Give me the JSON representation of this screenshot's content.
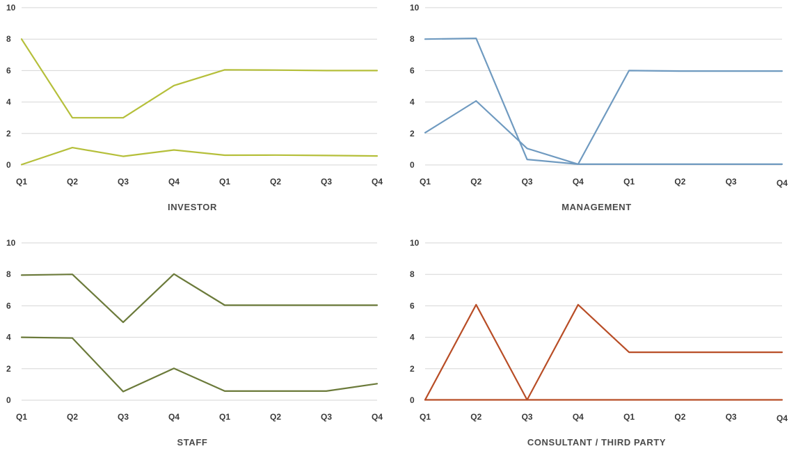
{
  "chart_data": [
    {
      "type": "line",
      "title": "INVESTOR",
      "categories": [
        "Q1",
        "Q2",
        "Q3",
        "Q4",
        "Q1",
        "Q2",
        "Q3",
        "Q4"
      ],
      "ylim": [
        0,
        10
      ],
      "yticks": [
        0,
        2,
        4,
        6,
        8,
        10
      ],
      "grid": true,
      "color": "#b5bf3a",
      "series": [
        {
          "values": [
            8.0,
            3.0,
            3.0,
            5.05,
            6.05,
            6.03,
            6.0,
            6.0
          ]
        },
        {
          "values": [
            0.02,
            1.1,
            0.55,
            0.95,
            0.62,
            0.63,
            0.6,
            0.57
          ]
        }
      ]
    },
    {
      "type": "line",
      "title": "MANAGEMENT",
      "categories": [
        "Q1",
        "Q2",
        "Q3",
        "Q4",
        "Q1",
        "Q2",
        "Q3",
        "Q4"
      ],
      "ylim": [
        0,
        10
      ],
      "yticks": [
        0,
        2,
        4,
        6,
        8,
        10
      ],
      "grid": true,
      "color": "#6f9ac0",
      "series": [
        {
          "values": [
            8.0,
            8.05,
            0.35,
            0.05,
            6.0,
            5.97,
            5.97,
            5.97
          ]
        },
        {
          "values": [
            2.05,
            4.07,
            1.05,
            0.05,
            0.05,
            0.05,
            0.05,
            0.05
          ]
        }
      ]
    },
    {
      "type": "line",
      "title": "STAFF",
      "categories": [
        "Q1",
        "Q2",
        "Q3",
        "Q4",
        "Q1",
        "Q2",
        "Q3",
        "Q4"
      ],
      "ylim": [
        0,
        10
      ],
      "yticks": [
        0,
        2,
        4,
        6,
        8,
        10
      ],
      "grid": true,
      "color": "#6b7a3a",
      "series": [
        {
          "values": [
            7.95,
            8.0,
            4.95,
            8.02,
            6.04,
            6.04,
            6.04,
            6.04
          ]
        },
        {
          "values": [
            4.0,
            3.95,
            0.55,
            2.02,
            0.58,
            0.58,
            0.58,
            1.05
          ]
        }
      ]
    },
    {
      "type": "line",
      "title": "CONSULTANT / THIRD PARTY",
      "categories": [
        "Q1",
        "Q2",
        "Q3",
        "Q4",
        "Q1",
        "Q2",
        "Q3",
        "Q4"
      ],
      "ylim": [
        0,
        10
      ],
      "yticks": [
        0,
        2,
        4,
        6,
        8,
        10
      ],
      "grid": true,
      "color": "#b84d26",
      "series": [
        {
          "values": [
            0.02,
            6.07,
            0.02,
            6.07,
            3.05,
            3.05,
            3.05,
            3.05
          ]
        },
        {
          "values": [
            0.02,
            0.02,
            0.02,
            0.02,
            0.02,
            0.02,
            0.02,
            0.02
          ]
        }
      ]
    }
  ]
}
